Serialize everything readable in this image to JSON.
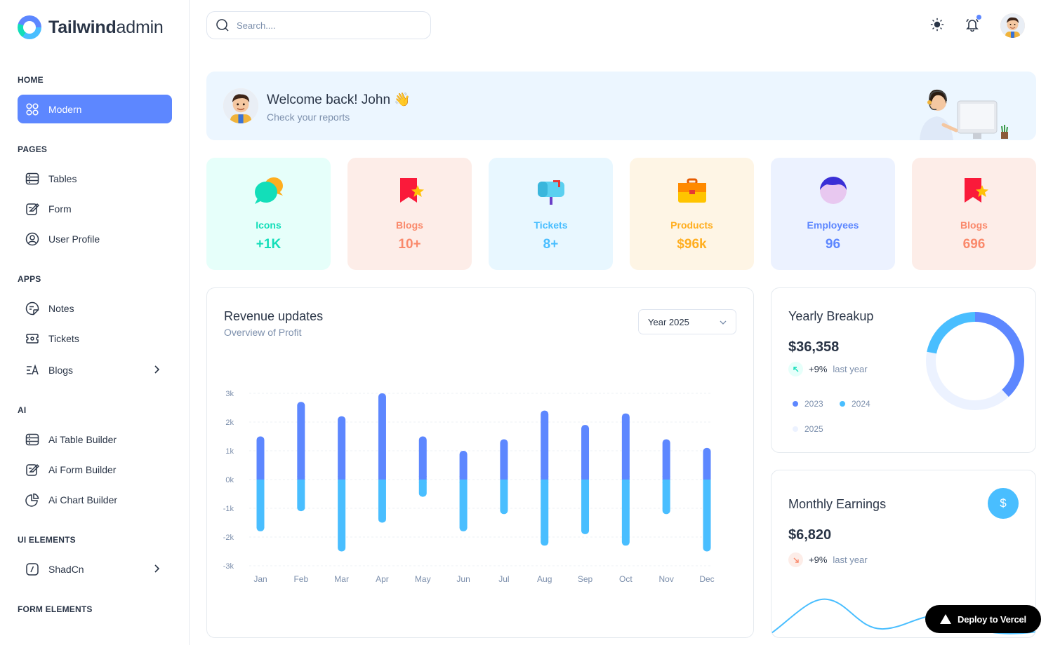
{
  "brand": {
    "name_bold": "Tailwind",
    "name_light": "admin"
  },
  "sidebar": {
    "sections": [
      {
        "heading": "HOME",
        "items": [
          {
            "label": "Modern",
            "icon": "grid-icon",
            "active": true
          }
        ]
      },
      {
        "heading": "PAGES",
        "items": [
          {
            "label": "Tables",
            "icon": "table-icon"
          },
          {
            "label": "Form",
            "icon": "form-icon"
          },
          {
            "label": "User Profile",
            "icon": "user-circle-icon"
          }
        ]
      },
      {
        "heading": "APPS",
        "items": [
          {
            "label": "Notes",
            "icon": "notes-icon"
          },
          {
            "label": "Tickets",
            "icon": "ticket-icon"
          },
          {
            "label": "Blogs",
            "icon": "blog-icon",
            "has_children": true
          }
        ]
      },
      {
        "heading": "AI",
        "items": [
          {
            "label": "Ai Table Builder",
            "icon": "table-icon"
          },
          {
            "label": "Ai Form Builder",
            "icon": "form-icon"
          },
          {
            "label": "Ai Chart Builder",
            "icon": "pie-chart-icon"
          }
        ]
      },
      {
        "heading": "UI ELEMENTS",
        "items": [
          {
            "label": "ShadCn",
            "icon": "shadcn-icon",
            "has_children": true
          }
        ]
      },
      {
        "heading": "FORM ELEMENTS",
        "items": []
      }
    ]
  },
  "header": {
    "search_placeholder": "Search....",
    "icons": [
      "sun-icon",
      "bell-icon"
    ]
  },
  "welcome": {
    "title": "Welcome back! John",
    "emoji": "👋",
    "subtitle": "Check your reports"
  },
  "stats": [
    {
      "label": "Icons",
      "value": "+1K",
      "color": "#13deb9",
      "bg": "#e6fffa"
    },
    {
      "label": "Blogs",
      "value": "10+",
      "color": "#fa896b",
      "bg": "#fdede8"
    },
    {
      "label": "Tickets",
      "value": "8+",
      "color": "#49beff",
      "bg": "#e8f7ff"
    },
    {
      "label": "Products",
      "value": "$96k",
      "color": "#ffae1f",
      "bg": "#fef5e5"
    },
    {
      "label": "Employees",
      "value": "96",
      "color": "#5d87ff",
      "bg": "#ecf2ff"
    },
    {
      "label": "Blogs",
      "value": "696",
      "color": "#fa896b",
      "bg": "#fdede8"
    }
  ],
  "revenue": {
    "title": "Revenue updates",
    "subtitle": "Overview of Profit",
    "year_select": "Year 2025"
  },
  "chart_data": {
    "type": "bar",
    "categories": [
      "Jan",
      "Feb",
      "Mar",
      "Apr",
      "May",
      "Jun",
      "Jul",
      "Aug",
      "Sep",
      "Oct",
      "Nov",
      "Dec"
    ],
    "series": [
      {
        "values": [
          1.5,
          2.7,
          2.2,
          3.0,
          1.5,
          1.0,
          1.4,
          2.4,
          1.9,
          2.3,
          1.4,
          1.1
        ],
        "color": "#5d87ff"
      },
      {
        "values": [
          -1.8,
          -1.1,
          -2.5,
          -1.5,
          -0.6,
          -1.8,
          -1.2,
          -2.3,
          -1.9,
          -2.3,
          -1.2,
          -2.5
        ],
        "color": "#49beff"
      }
    ],
    "y_ticks": [
      "3k",
      "2k",
      "1k",
      "0k",
      "-1k",
      "-2k",
      "-3k"
    ],
    "ylim": [
      -3,
      3
    ],
    "grid": true
  },
  "yearly": {
    "title": "Yearly Breakup",
    "value": "$36,358",
    "trend_pct": "+9%",
    "trend_label": "last year",
    "legend": [
      {
        "label": "2023",
        "color": "#5d87ff"
      },
      {
        "label": "2024",
        "color": "#49beff"
      },
      {
        "label": "2025",
        "color": "#ecf2ff"
      }
    ],
    "donut": [
      {
        "label": "2023",
        "value": 38,
        "color": "#5d87ff"
      },
      {
        "label": "2025",
        "value": 40,
        "color": "#ecf2ff"
      },
      {
        "label": "2024",
        "value": 22,
        "color": "#49beff"
      }
    ]
  },
  "monthly": {
    "title": "Monthly Earnings",
    "value": "$6,820",
    "trend_pct": "+9%",
    "trend_label": "last year",
    "button_symbol": "$"
  },
  "deploy": {
    "label": "Deploy to Vercel"
  }
}
